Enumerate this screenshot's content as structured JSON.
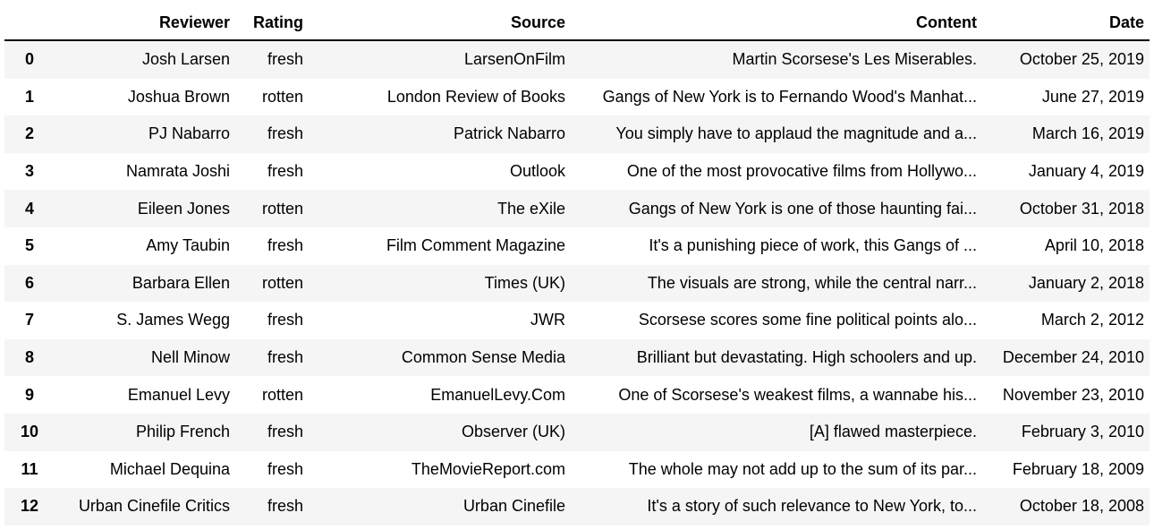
{
  "table": {
    "columns": [
      "Reviewer",
      "Rating",
      "Source",
      "Content",
      "Date"
    ],
    "rows": [
      {
        "index": "0",
        "reviewer": "Josh Larsen",
        "rating": "fresh",
        "source": "LarsenOnFilm",
        "content": "Martin Scorsese's Les Miserables.",
        "date": "October 25, 2019"
      },
      {
        "index": "1",
        "reviewer": "Joshua Brown",
        "rating": "rotten",
        "source": "London Review of Books",
        "content": "Gangs of New York is to Fernando Wood's Manhat...",
        "date": "June 27, 2019"
      },
      {
        "index": "2",
        "reviewer": "PJ Nabarro",
        "rating": "fresh",
        "source": "Patrick Nabarro",
        "content": "You simply have to applaud the magnitude and a...",
        "date": "March 16, 2019"
      },
      {
        "index": "3",
        "reviewer": "Namrata Joshi",
        "rating": "fresh",
        "source": "Outlook",
        "content": "One of the most provocative films from Hollywo...",
        "date": "January 4, 2019"
      },
      {
        "index": "4",
        "reviewer": "Eileen Jones",
        "rating": "rotten",
        "source": "The eXile",
        "content": "Gangs of New York is one of those haunting fai...",
        "date": "October 31, 2018"
      },
      {
        "index": "5",
        "reviewer": "Amy Taubin",
        "rating": "fresh",
        "source": "Film Comment Magazine",
        "content": "It's a punishing piece of work, this Gangs of ...",
        "date": "April 10, 2018"
      },
      {
        "index": "6",
        "reviewer": "Barbara Ellen",
        "rating": "rotten",
        "source": "Times (UK)",
        "content": "The visuals are strong, while the central narr...",
        "date": "January 2, 2018"
      },
      {
        "index": "7",
        "reviewer": "S. James Wegg",
        "rating": "fresh",
        "source": "JWR",
        "content": "Scorsese scores some fine political points alo...",
        "date": "March 2, 2012"
      },
      {
        "index": "8",
        "reviewer": "Nell Minow",
        "rating": "fresh",
        "source": "Common Sense Media",
        "content": "Brilliant but devastating. High schoolers and up.",
        "date": "December 24, 2010"
      },
      {
        "index": "9",
        "reviewer": "Emanuel Levy",
        "rating": "rotten",
        "source": "EmanuelLevy.Com",
        "content": "One of Scorsese's weakest films, a wannabe his...",
        "date": "November 23, 2010"
      },
      {
        "index": "10",
        "reviewer": "Philip French",
        "rating": "fresh",
        "source": "Observer (UK)",
        "content": "[A] flawed masterpiece.",
        "date": "February 3, 2010"
      },
      {
        "index": "11",
        "reviewer": "Michael Dequina",
        "rating": "fresh",
        "source": "TheMovieReport.com",
        "content": "The whole may not add up to the sum of its par...",
        "date": "February 18, 2009"
      },
      {
        "index": "12",
        "reviewer": "Urban Cinefile Critics",
        "rating": "fresh",
        "source": "Urban Cinefile",
        "content": "It's a story of such relevance to New York, to...",
        "date": "October 18, 2008"
      }
    ]
  },
  "colors": {
    "stripe": "#f5f5f5",
    "header_rule": "#000000"
  }
}
